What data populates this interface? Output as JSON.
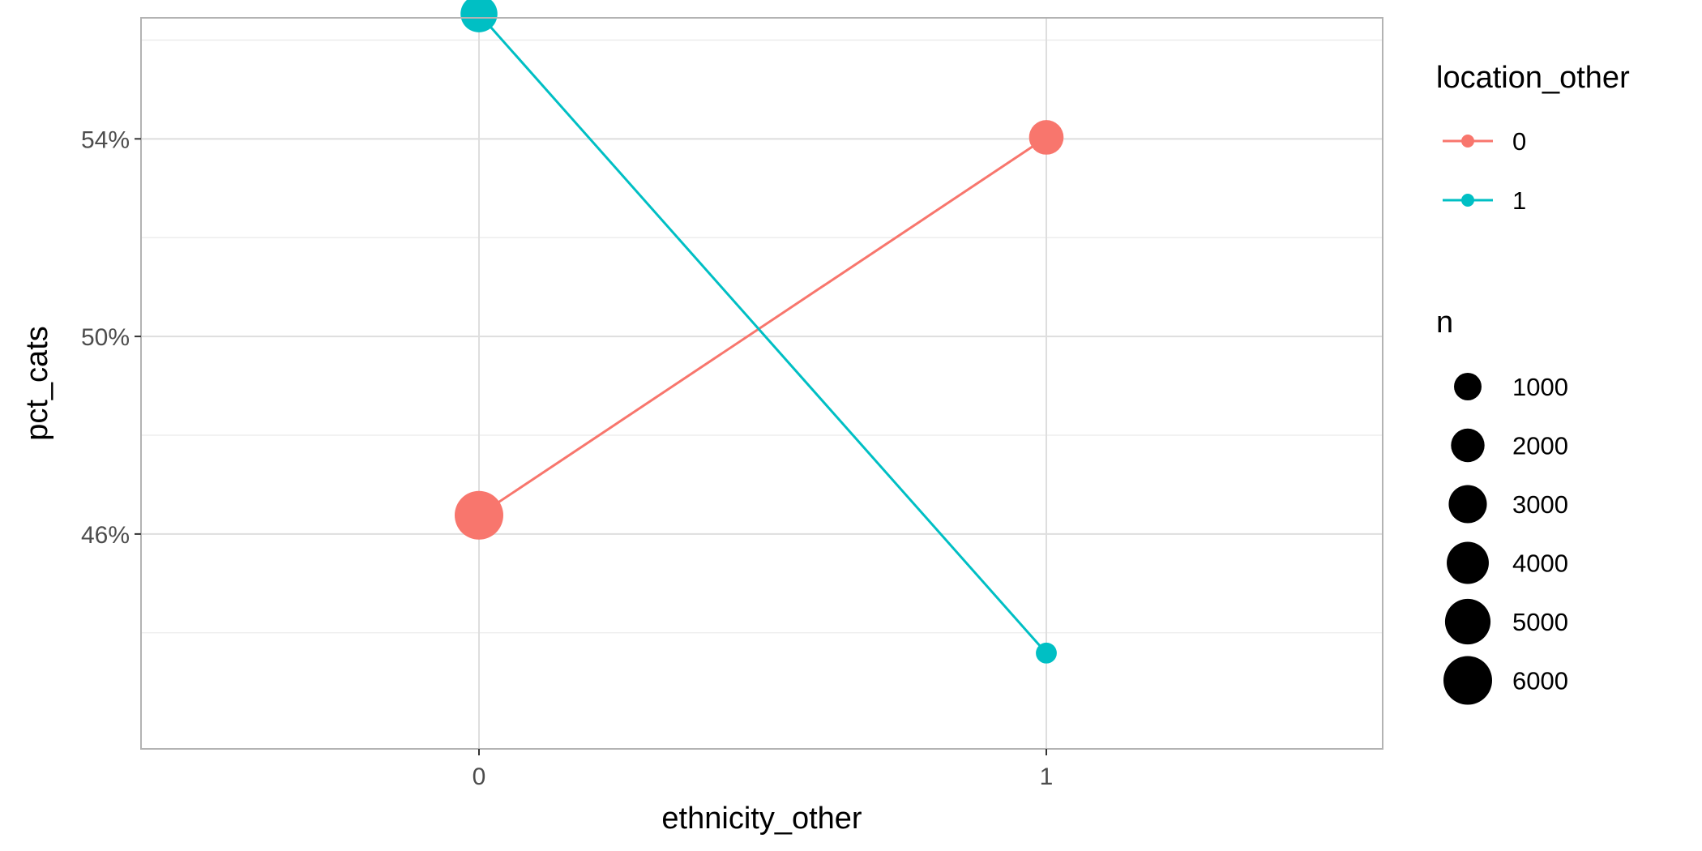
{
  "chart_data": {
    "type": "line",
    "xlabel": "ethnicity_other",
    "ylabel": "pct_cats",
    "x_categories": [
      "0",
      "1"
    ],
    "y_ticks": [
      {
        "value": 0.46,
        "label": "46%"
      },
      {
        "value": 0.5,
        "label": "50%"
      },
      {
        "value": 0.54,
        "label": "54%"
      }
    ],
    "ylim": [
      0.4165,
      0.5645
    ],
    "grid": true,
    "series": [
      {
        "name": "0",
        "color": "#F8766D",
        "points": [
          {
            "x": "0",
            "y": 0.4638,
            "n": 6000
          },
          {
            "x": "1",
            "y": 0.5403,
            "n": 2200
          }
        ]
      },
      {
        "name": "1",
        "color": "#00BFC4",
        "points": [
          {
            "x": "0",
            "y": 0.5653,
            "n": 2700
          },
          {
            "x": "1",
            "y": 0.4359,
            "n": 300
          }
        ]
      }
    ],
    "legend": {
      "position": "right",
      "color_title": "location_other",
      "size_title": "n",
      "size_breaks": [
        1000,
        2000,
        3000,
        4000,
        5000,
        6000
      ]
    }
  }
}
